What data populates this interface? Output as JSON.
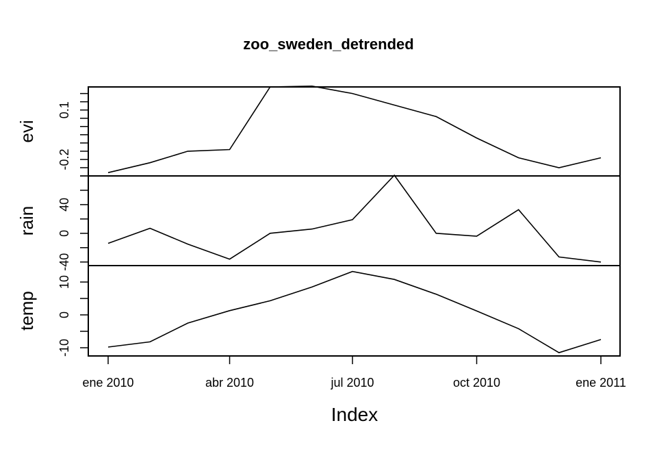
{
  "chart_data": {
    "type": "line",
    "title": "zoo_sweden_detrended",
    "xlabel": "Index",
    "x": [
      "2010-01-01",
      "2010-02-01",
      "2010-03-01",
      "2010-04-01",
      "2010-05-01",
      "2010-06-01",
      "2010-07-01",
      "2010-08-01",
      "2010-09-01",
      "2010-10-01",
      "2010-11-01",
      "2010-12-01",
      "2011-01-01"
    ],
    "x_ticks": [
      "2010-01-01",
      "2010-04-01",
      "2010-07-01",
      "2010-10-01",
      "2011-01-01"
    ],
    "x_tick_labels": [
      "ene 2010",
      "abr 2010",
      "jul 2010",
      "oct 2010",
      "ene 2011"
    ],
    "panels": [
      {
        "name": "evi",
        "ylim": [
          -0.3,
          0.24
        ],
        "ticks": [
          -0.3,
          -0.25,
          -0.2,
          -0.15,
          -0.1,
          -0.05,
          0,
          0.05,
          0.1,
          0.15,
          0.2
        ],
        "tick_labels": [
          {
            "v": -0.2,
            "t": "-0.2"
          },
          {
            "v": 0.1,
            "t": "0.1"
          }
        ],
        "values": [
          -0.28,
          -0.22,
          -0.15,
          -0.14,
          0.24,
          0.245,
          0.2,
          0.13,
          0.06,
          -0.07,
          -0.19,
          -0.25,
          -0.19
        ]
      },
      {
        "name": "rain",
        "ylim": [
          -45,
          80
        ],
        "ticks": [
          -40,
          -20,
          0,
          20,
          40,
          60,
          80
        ],
        "tick_labels": [
          {
            "v": -40,
            "t": "-40"
          },
          {
            "v": 0,
            "t": "0"
          },
          {
            "v": 40,
            "t": "40"
          }
        ],
        "values": [
          -14,
          7,
          -15,
          -36,
          0,
          6,
          19,
          81,
          0,
          -4,
          33,
          -33,
          -40
        ]
      },
      {
        "name": "temp",
        "ylim": [
          -12.5,
          15
        ],
        "ticks": [
          -10,
          -5,
          0,
          5,
          10
        ],
        "tick_labels": [
          {
            "v": -10,
            "t": "-10"
          },
          {
            "v": 0,
            "t": "0"
          },
          {
            "v": 10,
            "t": "10"
          }
        ],
        "values": [
          -9.8,
          -8.2,
          -2.5,
          1.3,
          4.3,
          8.5,
          13.2,
          10.8,
          6.3,
          1.2,
          -4.2,
          -11.5,
          -7.5
        ]
      }
    ]
  }
}
